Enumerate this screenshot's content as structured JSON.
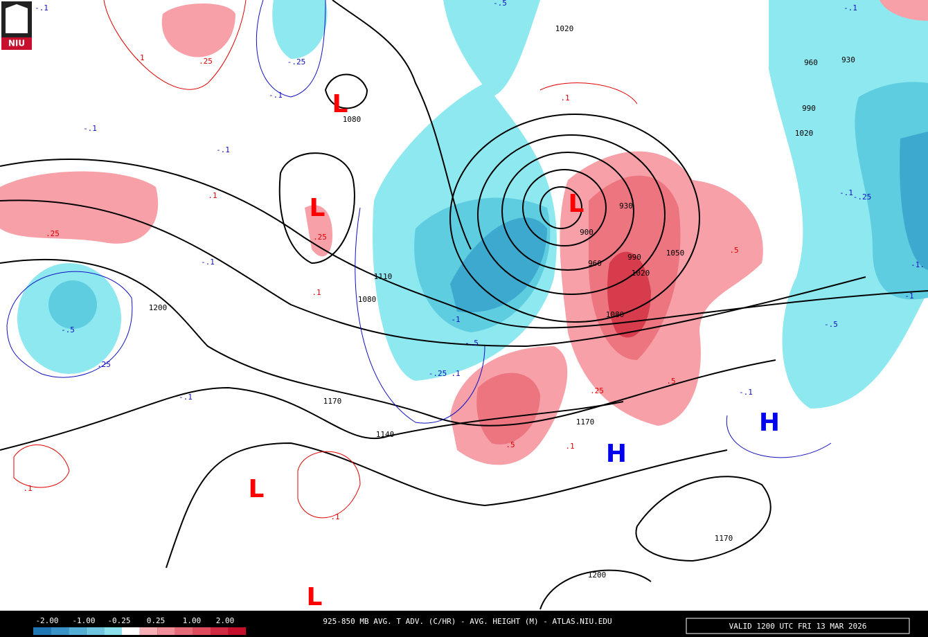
{
  "logo": "NIU",
  "map": {
    "height_labels": [
      "1020",
      "1080",
      "1110",
      "1080",
      "1200",
      "1170",
      "1140",
      "1170",
      "900",
      "930",
      "960",
      "990",
      "1020",
      "1050",
      "1080",
      "960",
      "930",
      "990",
      "1020",
      "1200",
      "1170"
    ],
    "warm_advection_labels": [
      ".1",
      ".25",
      ".1",
      ".25",
      ".25",
      ".1",
      ".5",
      ".5",
      ".25",
      ".1",
      ".5",
      ".1",
      ".1",
      ".1"
    ],
    "cold_advection_labels": [
      "-.1",
      "-.25",
      "-.1",
      "-.1",
      "-.1",
      "-.1",
      "-.5",
      ".25",
      "-.1",
      "-1",
      "-.5",
      "-.25",
      ".1",
      "-.5",
      "-.1",
      "-.25",
      "-.1",
      "-1",
      "-1.",
      "-.5",
      "-.1"
    ],
    "low_centers": [
      "L",
      "L",
      "L",
      "L",
      "L"
    ],
    "high_centers": [
      "H",
      "H"
    ]
  },
  "colorbar": {
    "labels": [
      "-2.00",
      "-1.00",
      "-0.25",
      "0.25",
      "1.00",
      "2.00"
    ]
  },
  "footer": {
    "title": "925-850 MB AVG. T ADV. (C/HR) - AVG. HEIGHT (M) - ATLAS.NIU.EDU",
    "valid": "VALID 1200 UTC FRI 13 MAR 2026"
  }
}
